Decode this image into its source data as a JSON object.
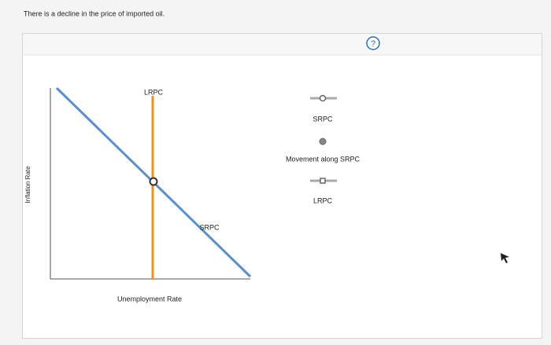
{
  "prompt": "There is a decline in the price of imported oil.",
  "help": "?",
  "graph": {
    "y_axis_label": "Inflation Rate",
    "x_axis_label": "Unemployment Rate",
    "curves": [
      {
        "label": "LRPC"
      },
      {
        "label": "SRPC"
      }
    ]
  },
  "tools": [
    {
      "label": "SRPC"
    },
    {
      "label": "Movement along SRPC"
    },
    {
      "label": "LRPC"
    }
  ]
}
